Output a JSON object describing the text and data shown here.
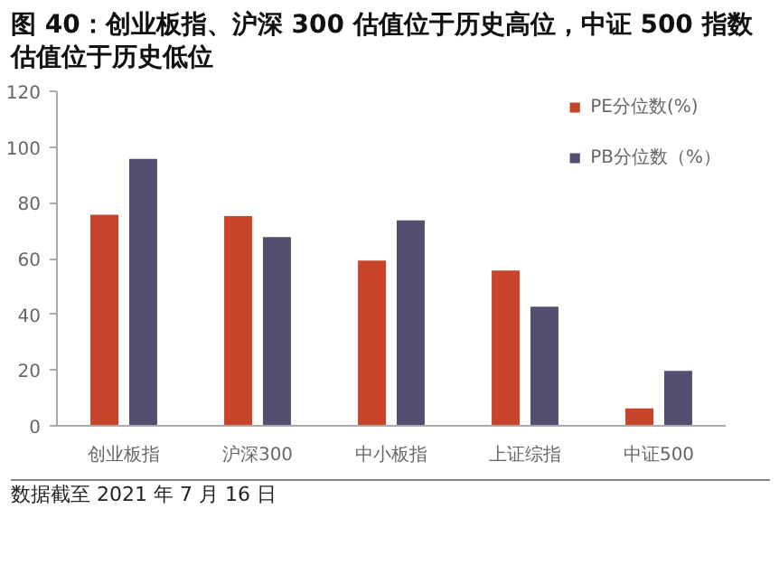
{
  "chart_data": {
    "type": "bar",
    "title": "图 40：创业板指、沪深 300 估值位于历史高位，中证 500 指数估值位于历史低位",
    "categories": [
      "创业板指",
      "沪深300",
      "中小板指",
      "上证综指",
      "中证500"
    ],
    "series": [
      {
        "name": "PE分位数(%)",
        "color": "#c8442a",
        "values": [
          76,
          75.5,
          59.5,
          56,
          6.5
        ]
      },
      {
        "name": "PB分位数（%）",
        "color": "#524f70",
        "values": [
          96,
          68,
          74,
          43,
          20
        ]
      }
    ],
    "ylim": [
      0,
      120
    ],
    "yticks": [
      0,
      20,
      40,
      60,
      80,
      100,
      120
    ],
    "grid": false,
    "legend": "top right",
    "annotations": [
      "数据截至 2021 年 7 月 16 日"
    ]
  }
}
